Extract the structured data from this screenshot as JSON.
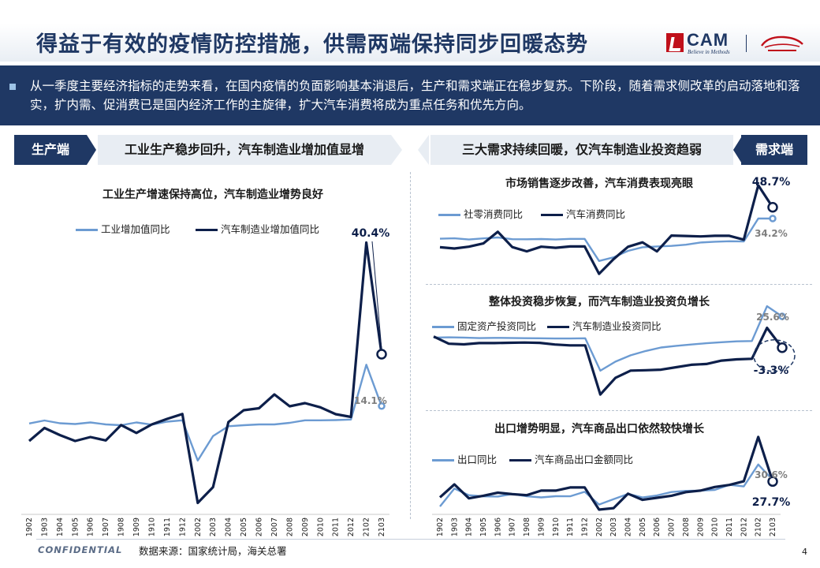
{
  "header": {
    "title": "得益于有效的疫情防控措施，供需两端保持同步回暖态势",
    "logo_text": "CAM",
    "logo_slogan": "Believe in Methods",
    "brand_color": "#1f3864",
    "logo_red": "#c0101a"
  },
  "summary": {
    "text": "从一季度主要经济指标的走势来看，在国内疫情的负面影响基本消退后，生产和需求端正在稳步复苏。下阶段，随着需求侧改革的启动落地和落实，扩内需、促消费已是国内经济工作的主旋律，扩大汽车消费将成为重点任务和优先方向。"
  },
  "sections": {
    "left_tag": "生产端",
    "left_banner": "工业生产稳步回升，汽车制造业增加值显增",
    "right_banner": "三大需求持续回暖，仅汽车制造业投资趋弱",
    "right_tag": "需求端"
  },
  "footer": {
    "confidential": "CONFIDENTIAL",
    "source": "数据来源：国家统计局，海关总署",
    "page_number": "4"
  },
  "chart_data": [
    {
      "id": "industrial",
      "type": "line",
      "title": "工业生产增速保持高位，汽车制造业增势良好",
      "categories": [
        "1902",
        "1903",
        "1904",
        "1905",
        "1906",
        "1907",
        "1908",
        "1909",
        "1910",
        "1911",
        "1912",
        "2002",
        "2003",
        "2004",
        "2005",
        "2006",
        "2007",
        "2008",
        "2009",
        "2010",
        "2011",
        "2012",
        "2102",
        "2103"
      ],
      "series": [
        {
          "name": "工业增加值同比",
          "color": "#6c9bd2",
          "values": [
            5.3,
            6.8,
            5.4,
            5.0,
            5.8,
            4.8,
            4.4,
            5.8,
            4.7,
            6.2,
            6.9,
            -13.5,
            -1.1,
            3.9,
            4.4,
            4.8,
            4.8,
            5.6,
            6.9,
            6.9,
            7.0,
            7.3,
            35.1,
            14.1
          ]
        },
        {
          "name": "汽车制造业增加值同比",
          "color": "#0d1f4a",
          "values": [
            -3.6,
            3.0,
            -0.6,
            -3.6,
            -1.6,
            -3.3,
            4.5,
            0.5,
            4.8,
            7.6,
            10.1,
            -35.0,
            -27.0,
            6.0,
            12.0,
            13.0,
            20.0,
            14.0,
            15.6,
            13.5,
            10.0,
            8.6,
            97.0,
            40.4
          ]
        }
      ],
      "labels": {
        "light_last": "14.1%",
        "dark_last": "40.4%"
      }
    },
    {
      "id": "consumption",
      "type": "line",
      "title": "市场销售逐步改善，汽车消费表现亮眼",
      "categories": [
        "1902",
        "1903",
        "1904",
        "1905",
        "1906",
        "1907",
        "1908",
        "1909",
        "1910",
        "1911",
        "1912",
        "2002",
        "2003",
        "2004",
        "2005",
        "2006",
        "2007",
        "2008",
        "2009",
        "2010",
        "2011",
        "2012",
        "2102",
        "2103"
      ],
      "series": [
        {
          "name": "社零消费同比",
          "color": "#6c9bd2",
          "values": [
            8.2,
            8.7,
            7.2,
            8.6,
            9.8,
            7.6,
            7.5,
            7.8,
            7.2,
            8.0,
            8.0,
            -20.5,
            -15.8,
            -7.5,
            -2.8,
            -1.8,
            -1.1,
            0.5,
            3.3,
            4.3,
            5.0,
            4.6,
            34.2,
            34.2
          ]
        },
        {
          "name": "汽车消费同比",
          "color": "#0d1f4a",
          "values": [
            -2.8,
            -4.4,
            -2.1,
            2.1,
            17.2,
            -2.6,
            -8.1,
            -2.1,
            -3.5,
            -1.8,
            -1.8,
            -37.0,
            -18.1,
            -2.2,
            3.5,
            -8.2,
            12.3,
            11.8,
            11.2,
            12.0,
            12.0,
            7.0,
            77.0,
            48.7
          ]
        }
      ],
      "labels": {
        "light_last": "34.2%",
        "dark_last": "48.7%"
      }
    },
    {
      "id": "investment",
      "type": "line",
      "title": "整体投资稳步恢复，而汽车制造业投资负增长",
      "categories": [
        "1902",
        "1903",
        "1904",
        "1905",
        "1906",
        "1907",
        "1908",
        "1909",
        "1910",
        "1911",
        "1912",
        "2002",
        "2003",
        "2004",
        "2005",
        "2006",
        "2007",
        "2008",
        "2009",
        "2010",
        "2011",
        "2012",
        "2102",
        "2103"
      ],
      "series": [
        {
          "name": "固定资产投资同比",
          "color": "#6c9bd2",
          "values": [
            6.1,
            6.3,
            6.1,
            5.6,
            5.8,
            5.7,
            5.5,
            5.4,
            5.2,
            5.2,
            5.4,
            -24.5,
            -16.1,
            -10.3,
            -6.3,
            -3.1,
            -1.6,
            -0.3,
            0.8,
            1.8,
            2.6,
            2.9,
            35.0,
            25.6
          ]
        },
        {
          "name": "汽车制造业投资同比",
          "color": "#0d1f4a",
          "values": [
            7.0,
            0.4,
            -0.2,
            1.0,
            1.0,
            1.3,
            1.5,
            1.2,
            -0.3,
            -1.1,
            -1.1,
            -46.4,
            -31.0,
            -24.4,
            -24.0,
            -23.5,
            -21.3,
            -19.0,
            -18.3,
            -15.2,
            -14.0,
            -13.5,
            15.0,
            -3.3
          ]
        }
      ],
      "labels": {
        "light_last": "25.6%",
        "dark_last": "-3.3%"
      }
    },
    {
      "id": "export",
      "type": "line",
      "title": "出口增势明显，汽车商品出口依然较快增长",
      "categories": [
        "1902",
        "1903",
        "1904",
        "1905",
        "1906",
        "1907",
        "1908",
        "1909",
        "1910",
        "1911",
        "1912",
        "2002",
        "2003",
        "2004",
        "2005",
        "2006",
        "2007",
        "2008",
        "2009",
        "2010",
        "2011",
        "2012",
        "2102",
        "2103"
      ],
      "series": [
        {
          "name": "出口同比",
          "color": "#6c9bd2",
          "values": [
            -20.8,
            14.0,
            1.1,
            -1.3,
            -1.6,
            3.3,
            -1.0,
            -3.2,
            -0.9,
            -1.1,
            7.6,
            -17.2,
            -6.6,
            3.5,
            -3.3,
            0.5,
            7.2,
            9.5,
            9.9,
            11.4,
            21.1,
            18.1,
            60.6,
            30.6
          ]
        },
        {
          "name": "汽车商品出口金额同比",
          "color": "#0d1f4a",
          "values": [
            -3.0,
            22.0,
            -5.0,
            0.0,
            6.0,
            3.0,
            1.0,
            10.0,
            10.0,
            16.0,
            16.0,
            -27.0,
            -24.0,
            4.0,
            -8.0,
            -4.0,
            0.0,
            7.0,
            10.0,
            17.0,
            21.0,
            28.0,
            114.0,
            27.7
          ]
        }
      ],
      "labels": {
        "light_last": "30.6%",
        "dark_last": "27.7%"
      }
    }
  ]
}
